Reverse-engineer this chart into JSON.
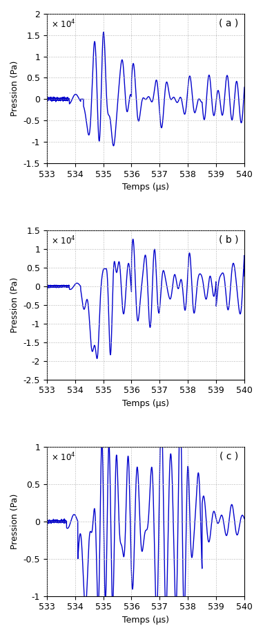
{
  "line_color": "#0000CC",
  "line_width": 1.0,
  "background_color": "#ffffff",
  "grid_color": "#b0b0b0",
  "grid_style": ":",
  "xlim": [
    533,
    540
  ],
  "xticks": [
    533,
    534,
    535,
    536,
    537,
    538,
    539,
    540
  ],
  "xlabel": "Temps (μs)",
  "ylabel": "Pression (Pa)",
  "subplots": [
    {
      "label": "( a )",
      "ylim": [
        -15000,
        20000
      ],
      "yticks": [
        -15000,
        -10000,
        -5000,
        0,
        5000,
        10000,
        15000,
        20000
      ],
      "yticklabels": [
        "-1.5",
        "-1",
        "-0.5",
        "0",
        "0.5",
        "1",
        "1.5",
        "2"
      ],
      "sci_exp": 4
    },
    {
      "label": "( b )",
      "ylim": [
        -25000,
        15000
      ],
      "yticks": [
        -25000,
        -20000,
        -15000,
        -10000,
        -5000,
        0,
        5000,
        10000,
        15000
      ],
      "yticklabels": [
        "-2.5",
        "-2",
        "-1.5",
        "-1",
        "-0.5",
        "0",
        "0.5",
        "1",
        "1.5"
      ],
      "sci_exp": 4
    },
    {
      "label": "( c )",
      "ylim": [
        -10000,
        10000
      ],
      "yticks": [
        -10000,
        -5000,
        0,
        5000,
        10000
      ],
      "yticklabels": [
        "-1",
        "-0.5",
        "0",
        "0.5",
        "1"
      ],
      "sci_exp": 4
    }
  ]
}
